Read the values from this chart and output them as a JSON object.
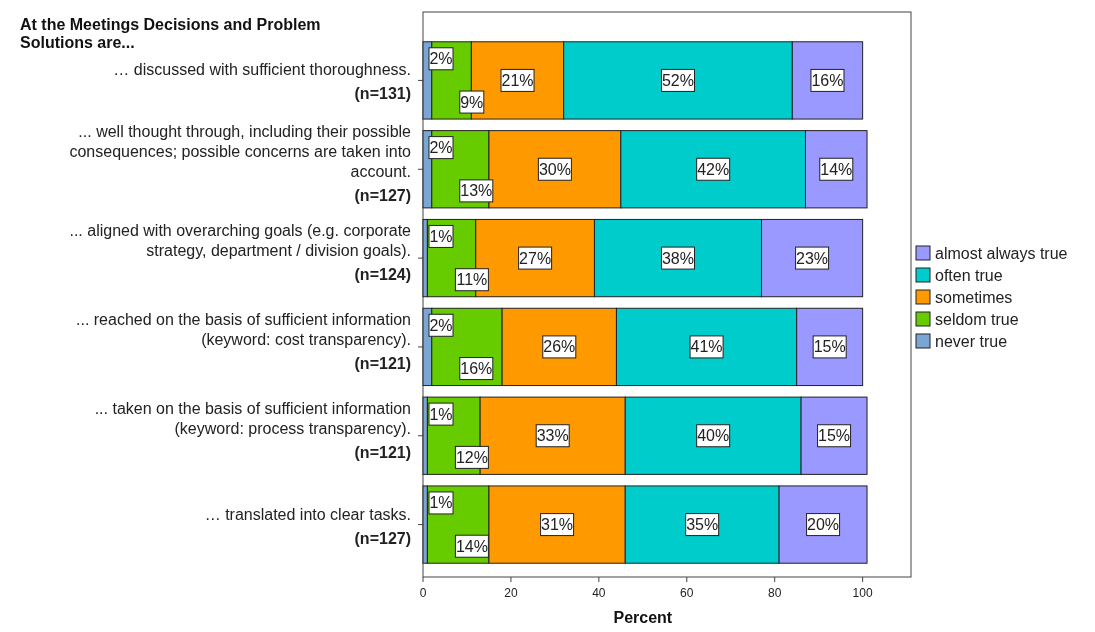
{
  "chart_data": {
    "type": "bar",
    "orientation": "horizontal",
    "stacked": true,
    "title": "At the Meetings Decisions and Problem Solutions are...",
    "xlabel": "Percent",
    "categories": [
      "… discussed with sufficient thoroughness.\n(n=131)",
      "... well thought through, including their possible\nconsequences; possible concerns are taken into\naccount.\n(n=127)",
      "... aligned with overarching goals (e.g. corporate\nstrategy, department / division goals).\n(n=124)",
      "... reached on the basis of sufficient information\n(keyword: cost transparency).\n(n=121)",
      "... taken on the basis of sufficient information\n(keyword: process transparency).\n(n=121)",
      "… translated into clear tasks.\n(n=127)"
    ],
    "series": [
      {
        "name": "never true",
        "color": "#7ba6d3",
        "values": [
          2,
          2,
          1,
          2,
          1,
          1
        ],
        "value_labels": [
          "2%",
          "2%",
          "1%",
          "2%",
          "1%",
          "1%"
        ]
      },
      {
        "name": "seldom true",
        "color": "#66cc00",
        "values": [
          9,
          13,
          11,
          16,
          12,
          14
        ],
        "value_labels": [
          "9%",
          "13%",
          "11%",
          "16%",
          "12%",
          "14%"
        ]
      },
      {
        "name": "sometimes",
        "color": "#ff9900",
        "values": [
          21,
          30,
          27,
          26,
          33,
          31
        ],
        "value_labels": [
          "21%",
          "30%",
          "27%",
          "26%",
          "33%",
          "31%"
        ]
      },
      {
        "name": "often true",
        "color": "#00cccc",
        "values": [
          52,
          42,
          38,
          41,
          40,
          35
        ],
        "value_labels": [
          "52%",
          "42%",
          "38%",
          "41%",
          "40%",
          "35%"
        ]
      },
      {
        "name": "almost always true",
        "color": "#9999ff",
        "values": [
          16,
          14,
          23,
          15,
          15,
          20
        ],
        "value_labels": [
          "16%",
          "14%",
          "23%",
          "15%",
          "15%",
          "20%"
        ]
      }
    ],
    "xlim": [
      0,
      111
    ],
    "xticks": [
      0,
      20,
      40,
      60,
      80,
      100
    ],
    "legend": "right"
  }
}
